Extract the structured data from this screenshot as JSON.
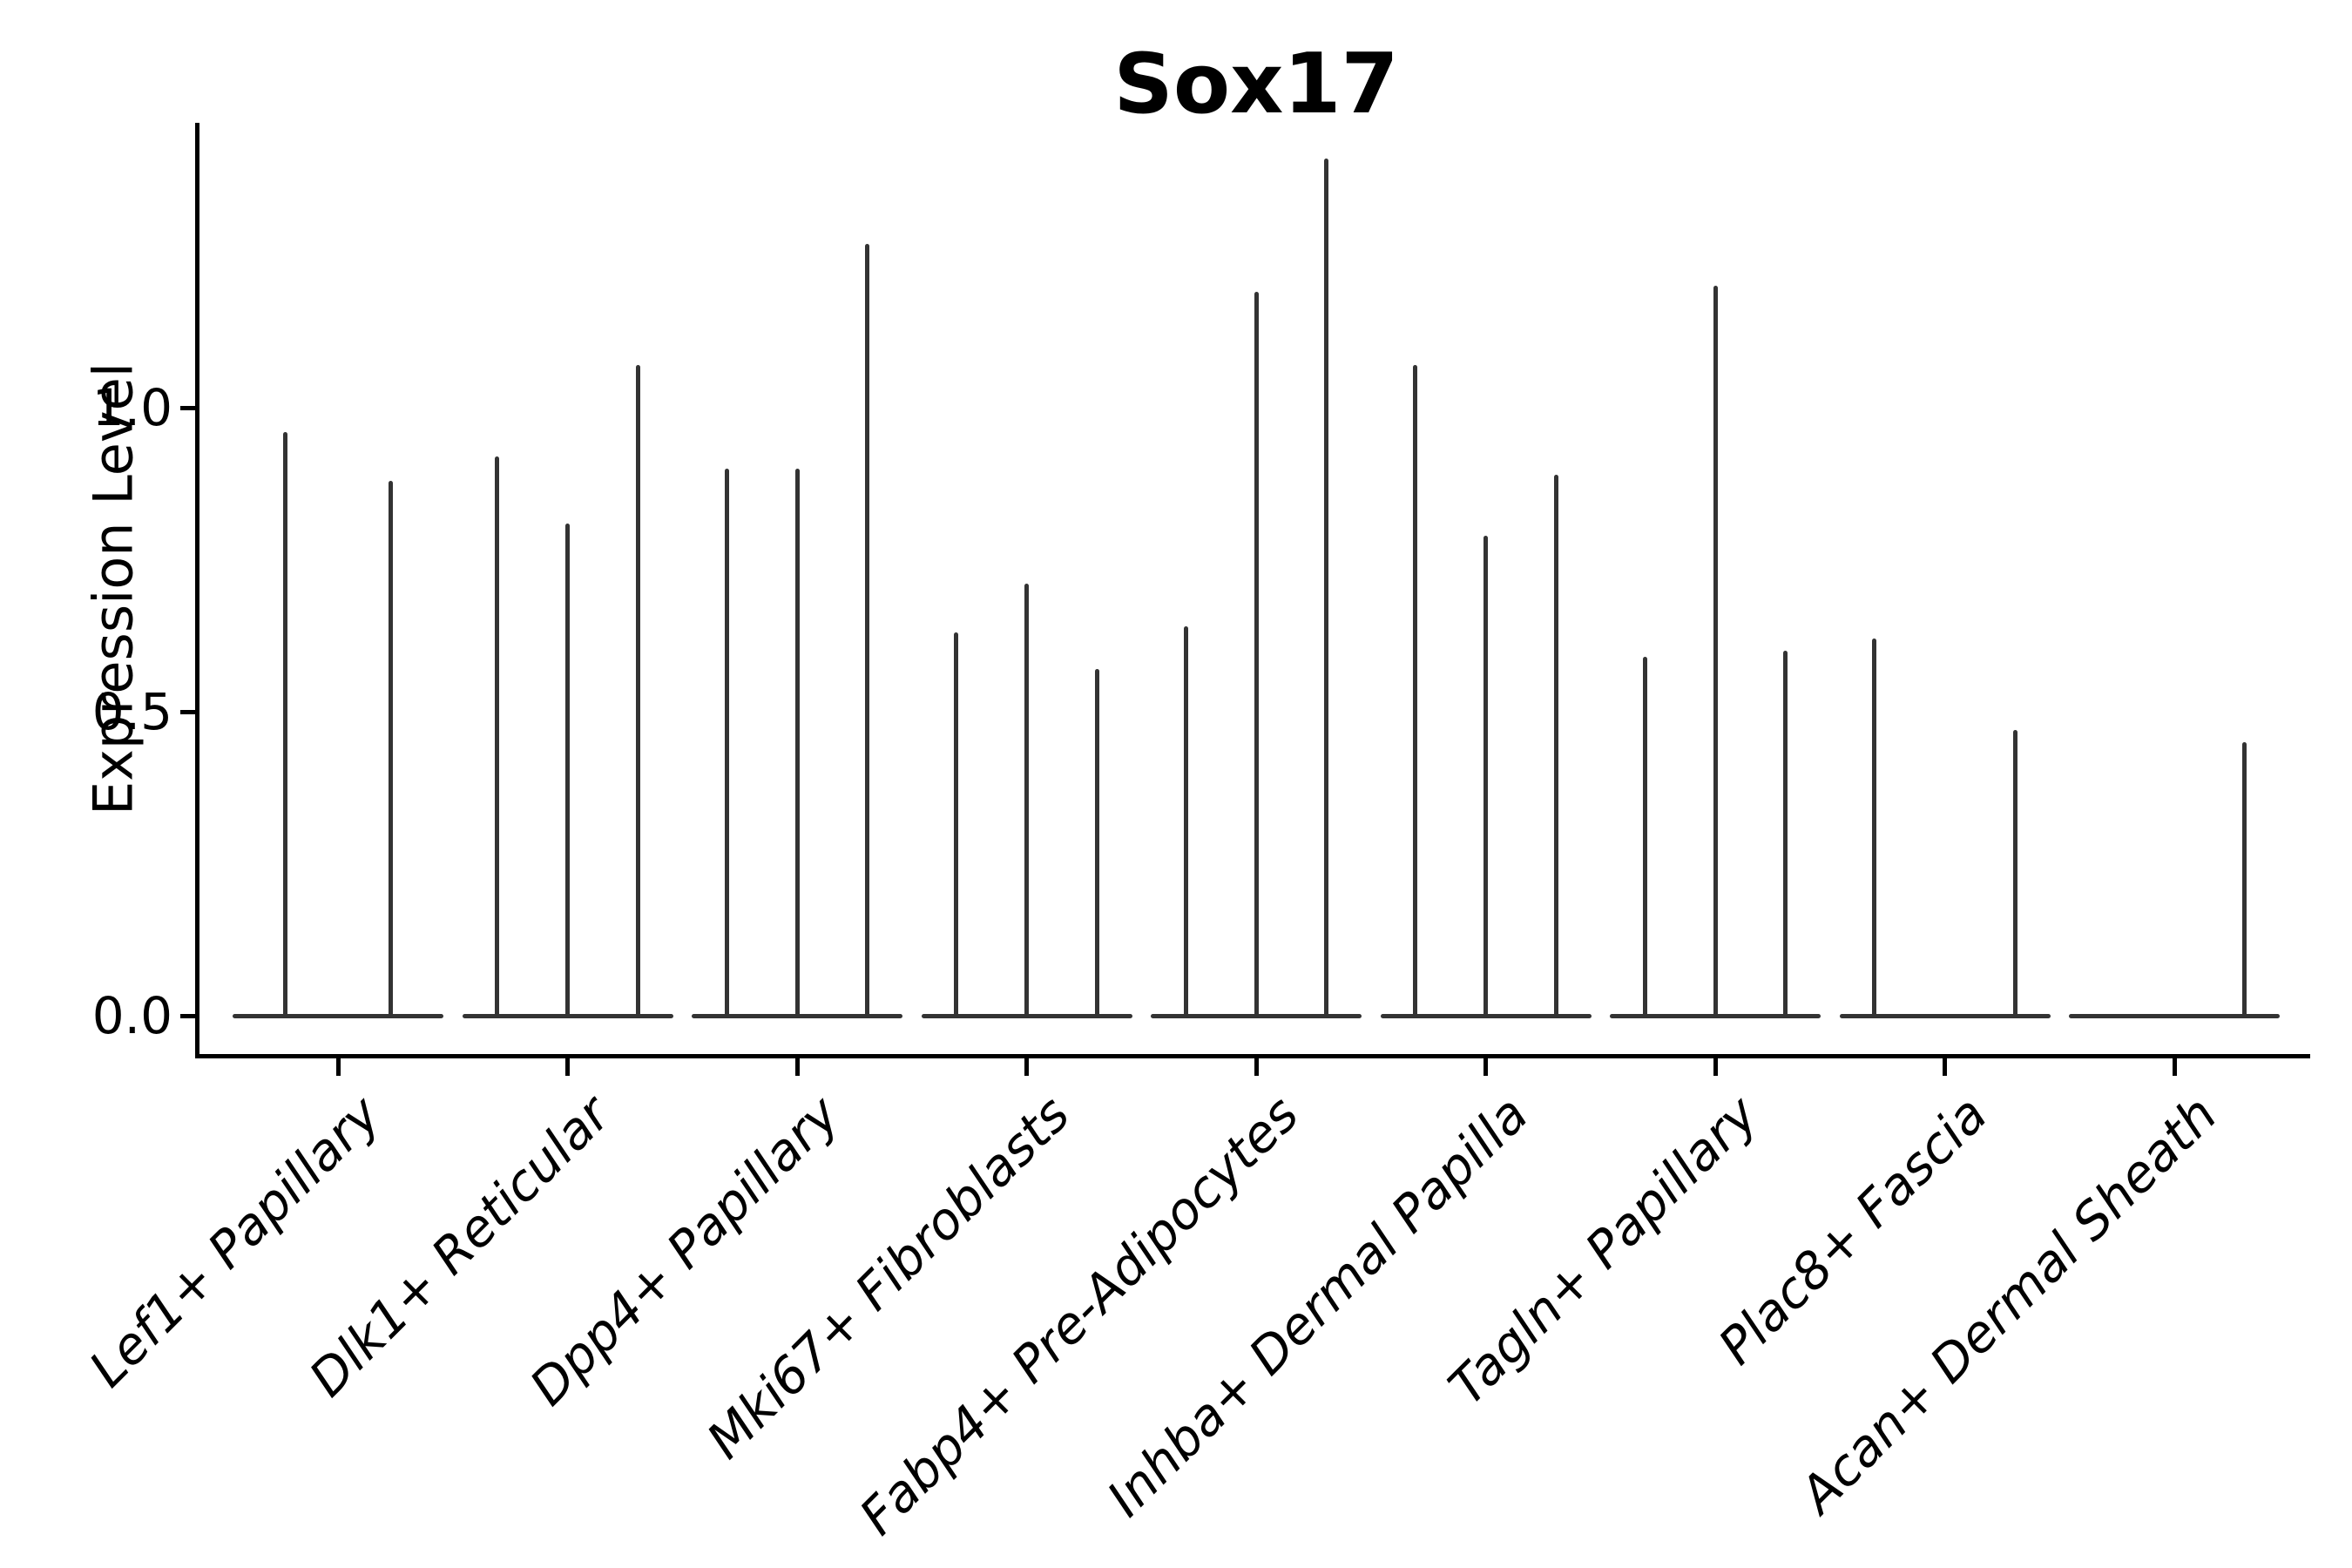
{
  "title": "Sox17",
  "y_axis": {
    "label": "Expression Level",
    "tick_labels": [
      "0.0",
      "0.5",
      "1.0"
    ]
  },
  "x_axis": {
    "categories": [
      "Lef1+ Papillary",
      "Dlk1+ Reticular",
      "Dpp4+ Papillary",
      "Mki67+ Fibroblasts",
      "Fabp4+ Pre-Adipocytes",
      "Inhba+ Dermal Papilla",
      "Tagln+ Papillary",
      "Plac8+ Fascia",
      "Acan+ Dermal Sheath"
    ]
  },
  "chart_data": {
    "type": "violin",
    "title": "Sox17",
    "xlabel": "",
    "ylabel": "Expression Level",
    "ylim": [
      -0.07,
      1.47
    ],
    "yticks": [
      0.0,
      0.5,
      1.0
    ],
    "grid": false,
    "legend": "none",
    "description": "Needle-thin stacked violin plot (single-cell gene expression). Each category shows 2-3 collapsed violins: a flat base at 0 with a thin spike rising to the maximum expression value. Peaks of 0 mean a completely flat violin at the baseline.",
    "categories": [
      "Lef1+ Papillary",
      "Dlk1+ Reticular",
      "Dpp4+ Papillary",
      "Mki67+ Fibroblasts",
      "Fabp4+ Pre-Adipocytes",
      "Inhba+ Dermal Papilla",
      "Tagln+ Papillary",
      "Plac8+ Fascia",
      "Acan+ Dermal Sheath"
    ],
    "groups": [
      {
        "category": "Lef1+ Papillary",
        "violin_peaks": [
          0.96,
          0.88
        ]
      },
      {
        "category": "Dlk1+ Reticular",
        "violin_peaks": [
          0.92,
          0.81,
          1.07
        ]
      },
      {
        "category": "Dpp4+ Papillary",
        "violin_peaks": [
          0.9,
          0.9,
          1.27
        ]
      },
      {
        "category": "Mki67+ Fibroblasts",
        "violin_peaks": [
          0.63,
          0.71,
          0.57
        ]
      },
      {
        "category": "Fabp4+ Pre-Adipocytes",
        "violin_peaks": [
          0.64,
          1.19,
          1.41
        ]
      },
      {
        "category": "Inhba+ Dermal Papilla",
        "violin_peaks": [
          1.07,
          0.79,
          0.89
        ]
      },
      {
        "category": "Tagln+ Papillary",
        "violin_peaks": [
          0.59,
          1.2,
          0.6
        ]
      },
      {
        "category": "Plac8+ Fascia",
        "violin_peaks": [
          0.62,
          0.0,
          0.47
        ]
      },
      {
        "category": "Acan+ Dermal Sheath",
        "violin_peaks": [
          0.0,
          0.0,
          0.45
        ]
      }
    ],
    "style": {
      "violin_color": "#333333",
      "axis_color": "#000000",
      "background": "#ffffff"
    }
  }
}
